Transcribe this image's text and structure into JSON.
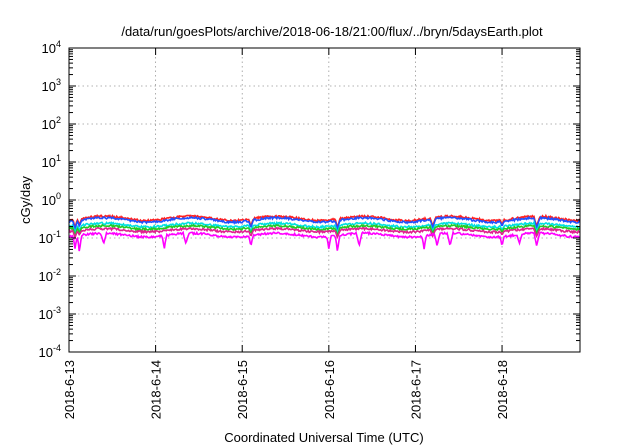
{
  "chart_data": {
    "type": "line",
    "title": "/data/run/goesPlots/archive/2018-06-18/21:00/flux/../bryn/5daysEarth.plot",
    "xlabel": "Coordinated Universal Time (UTC)",
    "ylabel": "cGy/day",
    "yscale": "log",
    "ylim": [
      0.0001,
      10000
    ],
    "xlim": [
      0,
      5.9
    ],
    "x_ticks": [
      {
        "x": 0,
        "label": "2018-6-13"
      },
      {
        "x": 1,
        "label": "2018-6-14"
      },
      {
        "x": 2,
        "label": "2018-6-15"
      },
      {
        "x": 3,
        "label": "2018-6-16"
      },
      {
        "x": 4,
        "label": "2018-6-17"
      },
      {
        "x": 5,
        "label": "2018-6-18"
      }
    ],
    "y_ticks": [
      {
        "value": 0.0001,
        "base": "10",
        "exp": "-4"
      },
      {
        "value": 0.001,
        "base": "10",
        "exp": "-3"
      },
      {
        "value": 0.01,
        "base": "10",
        "exp": "-2"
      },
      {
        "value": 0.1,
        "base": "10",
        "exp": "-1"
      },
      {
        "value": 1,
        "base": "10",
        "exp": "0"
      },
      {
        "value": 10,
        "base": "10",
        "exp": "1"
      },
      {
        "value": 100,
        "base": "10",
        "exp": "2"
      },
      {
        "value": 1000,
        "base": "10",
        "exp": "3"
      },
      {
        "value": 10000,
        "base": "10",
        "exp": "4"
      }
    ],
    "grid": true,
    "series": [
      {
        "color": "#ff2020",
        "base": 0.33,
        "daily_amp": 0.13,
        "dips": [
          [
            0.07,
            0.18
          ],
          [
            0.12,
            0.22
          ],
          [
            2.1,
            0.2
          ],
          [
            3.1,
            0.18
          ],
          [
            4.2,
            0.2
          ],
          [
            5.0,
            0.22
          ],
          [
            5.4,
            0.2
          ]
        ]
      },
      {
        "color": "#2050ff",
        "base": 0.3,
        "daily_amp": 0.13,
        "dips": [
          [
            0.07,
            0.16
          ],
          [
            0.12,
            0.2
          ],
          [
            2.1,
            0.18
          ],
          [
            3.1,
            0.16
          ],
          [
            4.2,
            0.18
          ],
          [
            5.0,
            0.2
          ],
          [
            5.4,
            0.18
          ]
        ]
      },
      {
        "color": "#00e0e0",
        "base": 0.22,
        "daily_amp": 0.11,
        "dips": [
          [
            0.07,
            0.13
          ],
          [
            0.12,
            0.16
          ],
          [
            2.1,
            0.15
          ],
          [
            3.1,
            0.13
          ],
          [
            4.2,
            0.15
          ],
          [
            5.0,
            0.16
          ],
          [
            5.4,
            0.15
          ]
        ]
      },
      {
        "color": "#22cc22",
        "base": 0.19,
        "daily_amp": 0.1,
        "dips": [
          [
            0.07,
            0.11
          ],
          [
            0.12,
            0.14
          ],
          [
            2.1,
            0.13
          ],
          [
            3.1,
            0.11
          ],
          [
            4.2,
            0.13
          ],
          [
            5.0,
            0.14
          ],
          [
            5.4,
            0.13
          ]
        ]
      },
      {
        "color": "#e02090",
        "base": 0.16,
        "daily_amp": 0.1,
        "dips": [
          [
            0.07,
            0.1
          ],
          [
            0.12,
            0.12
          ],
          [
            2.1,
            0.11
          ],
          [
            3.1,
            0.1
          ],
          [
            4.2,
            0.11
          ],
          [
            5.0,
            0.12
          ],
          [
            5.4,
            0.11
          ]
        ]
      },
      {
        "color": "#ff00ff",
        "base": 0.12,
        "daily_amp": 0.12,
        "dips": [
          [
            0.07,
            0.05
          ],
          [
            0.12,
            0.04
          ],
          [
            0.4,
            0.07
          ],
          [
            1.1,
            0.05
          ],
          [
            1.35,
            0.07
          ],
          [
            2.1,
            0.06
          ],
          [
            3.0,
            0.05
          ],
          [
            3.1,
            0.04
          ],
          [
            3.35,
            0.06
          ],
          [
            4.1,
            0.05
          ],
          [
            4.25,
            0.06
          ],
          [
            4.4,
            0.06
          ],
          [
            5.0,
            0.06
          ],
          [
            5.2,
            0.07
          ],
          [
            5.4,
            0.06
          ]
        ]
      }
    ]
  }
}
